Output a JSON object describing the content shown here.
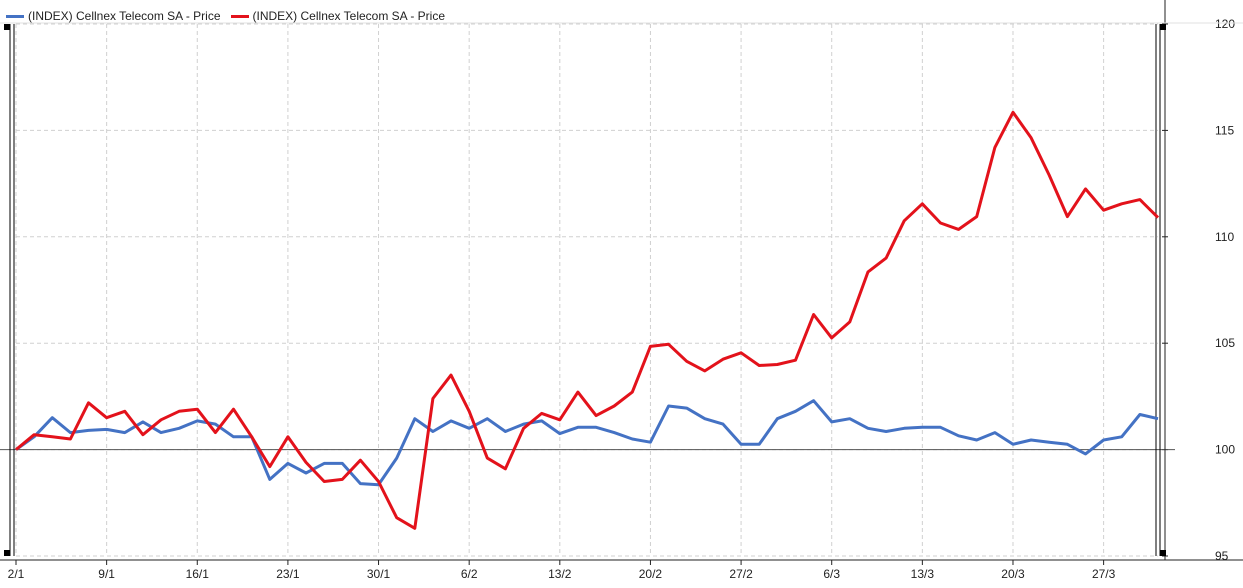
{
  "chart_data": {
    "type": "line",
    "ylim": [
      95,
      120
    ],
    "yticks": [
      95,
      100,
      105,
      110,
      115,
      120
    ],
    "grid": true,
    "legend_placement": "top-left",
    "baseline": 100,
    "xticks": [
      {
        "label": "2/1",
        "i": 0
      },
      {
        "label": "9/1",
        "i": 5
      },
      {
        "label": "16/1",
        "i": 10
      },
      {
        "label": "23/1",
        "i": 15
      },
      {
        "label": "30/1",
        "i": 20
      },
      {
        "label": "6/2",
        "i": 25
      },
      {
        "label": "13/2",
        "i": 30
      },
      {
        "label": "20/2",
        "i": 35
      },
      {
        "label": "27/2",
        "i": 40
      },
      {
        "label": "6/3",
        "i": 45
      },
      {
        "label": "13/3",
        "i": 50
      },
      {
        "label": "20/3",
        "i": 55
      },
      {
        "label": "27/3",
        "i": 60
      }
    ],
    "series": [
      {
        "name": "(INDEX) Cellnex Telecom SA - Price",
        "color": "#4472c4",
        "values": [
          100.0,
          100.6,
          101.5,
          100.8,
          100.9,
          100.95,
          100.8,
          101.3,
          100.8,
          101.0,
          101.35,
          101.2,
          100.6,
          100.6,
          98.6,
          99.35,
          98.9,
          99.35,
          99.35,
          98.4,
          98.35,
          99.6,
          101.45,
          100.85,
          101.35,
          101.0,
          101.45,
          100.85,
          101.2,
          101.35,
          100.75,
          101.05,
          101.05,
          100.8,
          100.5,
          100.35,
          102.05,
          101.95,
          101.45,
          101.2,
          100.25,
          100.25,
          101.45,
          101.8,
          102.3,
          101.3,
          101.45,
          101.0,
          100.85,
          101.0,
          101.05,
          101.05,
          100.65,
          100.45,
          100.8,
          100.25,
          100.45,
          100.35,
          100.25,
          99.8,
          100.45,
          100.6,
          101.65,
          101.45
        ]
      },
      {
        "name": "(INDEX) Cellnex Telecom SA - Price",
        "color": "#e3121b",
        "values": [
          100.0,
          100.7,
          100.6,
          100.5,
          102.2,
          101.5,
          101.8,
          100.7,
          101.4,
          101.8,
          101.9,
          100.8,
          101.9,
          100.6,
          99.2,
          100.6,
          99.4,
          98.5,
          98.6,
          99.5,
          98.5,
          96.8,
          96.3,
          102.4,
          103.5,
          101.8,
          99.6,
          99.1,
          101.0,
          101.7,
          101.4,
          102.7,
          101.6,
          102.05,
          102.7,
          104.85,
          104.95,
          104.15,
          103.7,
          104.25,
          104.55,
          103.95,
          104.0,
          104.2,
          106.35,
          105.25,
          106.0,
          108.35,
          109.0,
          110.75,
          111.55,
          110.65,
          110.35,
          110.95,
          114.2,
          115.85,
          114.65,
          112.9,
          110.95,
          112.25,
          111.25,
          111.55,
          111.75,
          110.9
        ]
      }
    ]
  }
}
